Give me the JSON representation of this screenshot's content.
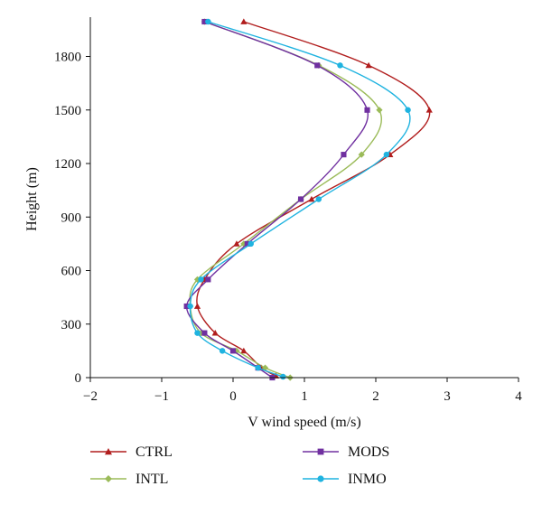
{
  "chart_data": {
    "type": "line",
    "xlabel": "V wind speed (m/s)",
    "ylabel": "Height (m)",
    "xlim": [
      -2,
      4
    ],
    "ylim": [
      0,
      2000
    ],
    "xticks": [
      -2,
      -1,
      0,
      1,
      2,
      3,
      4
    ],
    "yticks": [
      0,
      300,
      600,
      900,
      1200,
      1500,
      1800
    ],
    "grid": false,
    "legend_position": "bottom",
    "series": [
      {
        "name": "CTRL",
        "color": "#b11d1d",
        "marker": "triangle",
        "points": [
          {
            "x": 0.6,
            "y": 10
          },
          {
            "x": 0.4,
            "y": 55
          },
          {
            "x": 0.15,
            "y": 150
          },
          {
            "x": -0.25,
            "y": 250
          },
          {
            "x": -0.5,
            "y": 400
          },
          {
            "x": -0.4,
            "y": 550
          },
          {
            "x": 0.05,
            "y": 750
          },
          {
            "x": 1.1,
            "y": 1000
          },
          {
            "x": 2.2,
            "y": 1250
          },
          {
            "x": 2.75,
            "y": 1500
          },
          {
            "x": 1.9,
            "y": 1750
          },
          {
            "x": 0.15,
            "y": 1995
          }
        ]
      },
      {
        "name": "INTL",
        "color": "#9bbb59",
        "marker": "diamond",
        "points": [
          {
            "x": 0.8,
            "y": 0
          },
          {
            "x": 0.45,
            "y": 55
          },
          {
            "x": 0.05,
            "y": 150
          },
          {
            "x": -0.45,
            "y": 250
          },
          {
            "x": -0.6,
            "y": 400
          },
          {
            "x": -0.5,
            "y": 550
          },
          {
            "x": 0.15,
            "y": 750
          },
          {
            "x": 0.95,
            "y": 1000
          },
          {
            "x": 1.8,
            "y": 1250
          },
          {
            "x": 2.05,
            "y": 1500
          },
          {
            "x": 1.2,
            "y": 1750
          },
          {
            "x": -0.4,
            "y": 1995
          }
        ]
      },
      {
        "name": "MODS",
        "color": "#7030a0",
        "marker": "square",
        "points": [
          {
            "x": 0.55,
            "y": 0
          },
          {
            "x": 0.35,
            "y": 55
          },
          {
            "x": 0.0,
            "y": 150
          },
          {
            "x": -0.4,
            "y": 250
          },
          {
            "x": -0.65,
            "y": 400
          },
          {
            "x": -0.35,
            "y": 550
          },
          {
            "x": 0.2,
            "y": 750
          },
          {
            "x": 0.95,
            "y": 1000
          },
          {
            "x": 1.55,
            "y": 1250
          },
          {
            "x": 1.88,
            "y": 1500
          },
          {
            "x": 1.18,
            "y": 1750
          },
          {
            "x": -0.4,
            "y": 1995
          }
        ]
      },
      {
        "name": "INMO",
        "color": "#1fb3e0",
        "marker": "circle",
        "points": [
          {
            "x": 0.7,
            "y": 5
          },
          {
            "x": 0.35,
            "y": 55
          },
          {
            "x": -0.15,
            "y": 150
          },
          {
            "x": -0.5,
            "y": 250
          },
          {
            "x": -0.6,
            "y": 400
          },
          {
            "x": -0.45,
            "y": 550
          },
          {
            "x": 0.25,
            "y": 750
          },
          {
            "x": 1.2,
            "y": 1000
          },
          {
            "x": 2.15,
            "y": 1250
          },
          {
            "x": 2.45,
            "y": 1500
          },
          {
            "x": 1.5,
            "y": 1750
          },
          {
            "x": -0.35,
            "y": 1995
          }
        ]
      }
    ]
  }
}
